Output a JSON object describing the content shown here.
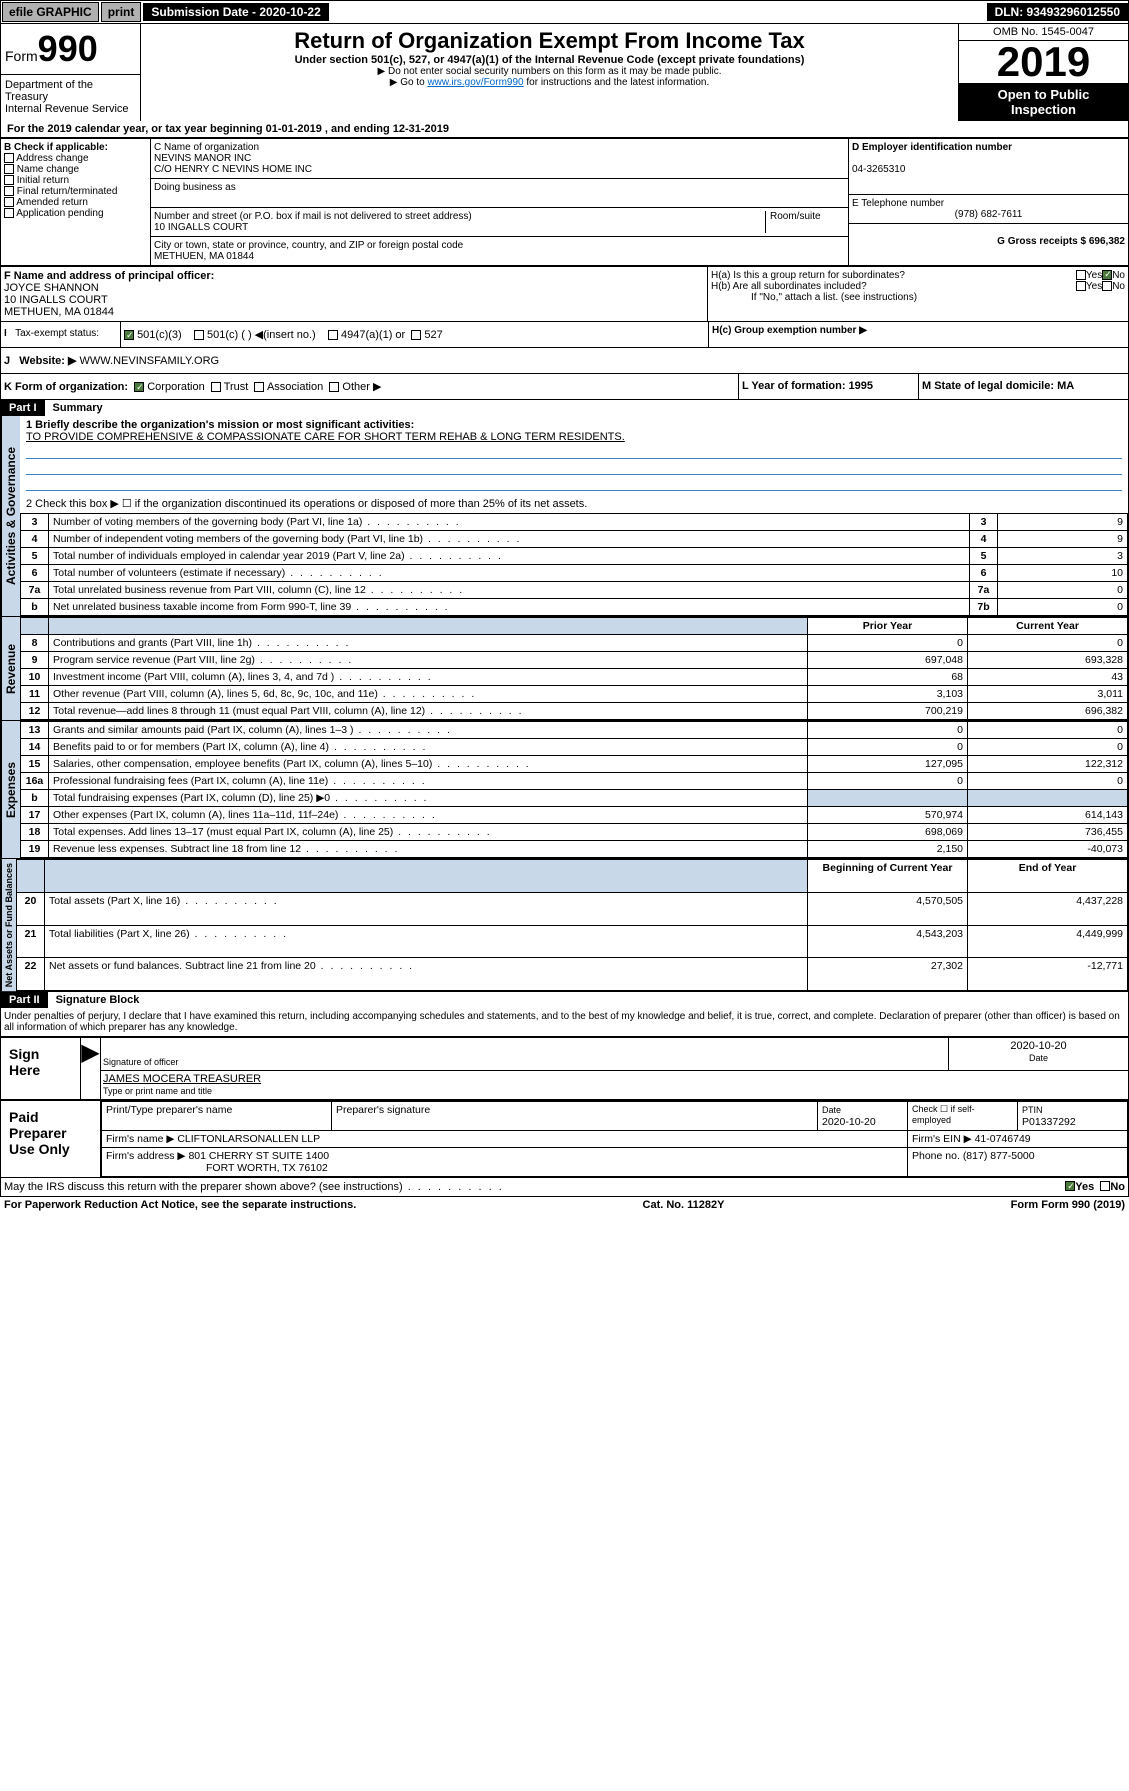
{
  "topbar": {
    "efile": "efile GRAPHIC",
    "print": "print",
    "sub_label": "Submission Date - 2020-10-22",
    "dln": "DLN: 93493296012550"
  },
  "header": {
    "form_word": "Form",
    "form_num": "990",
    "title": "Return of Organization Exempt From Income Tax",
    "subtitle": "Under section 501(c), 527, or 4947(a)(1) of the Internal Revenue Code (except private foundations)",
    "instr1": "▶ Do not enter social security numbers on this form as it may be made public.",
    "instr2_pre": "▶ Go to ",
    "instr2_link": "www.irs.gov/Form990",
    "instr2_post": " for instructions and the latest information.",
    "omb": "OMB No. 1545-0047",
    "year": "2019",
    "open1": "Open to Public",
    "open2": "Inspection",
    "dept1": "Department of the Treasury",
    "dept2": "Internal Revenue Service"
  },
  "period": {
    "text": "For the 2019 calendar year, or tax year beginning 01-01-2019    , and ending 12-31-2019"
  },
  "boxB": {
    "label": "B Check if applicable:",
    "opts": [
      "Address change",
      "Name change",
      "Initial return",
      "Final return/terminated",
      "Amended return",
      "Application pending"
    ]
  },
  "boxC": {
    "name_label": "C Name of organization",
    "name": "NEVINS MANOR INC",
    "co": "C/O HENRY C NEVINS HOME INC",
    "dba_label": "Doing business as",
    "addr_label": "Number and street (or P.O. box if mail is not delivered to street address)",
    "room": "Room/suite",
    "addr": "10 INGALLS COURT",
    "city_label": "City or town, state or province, country, and ZIP or foreign postal code",
    "city": "METHUEN, MA  01844"
  },
  "boxD": {
    "label": "D Employer identification number",
    "val": "04-3265310"
  },
  "boxE": {
    "label": "E Telephone number",
    "val": "(978) 682-7611"
  },
  "boxG": {
    "label": "G Gross receipts $ 696,382"
  },
  "boxF": {
    "label": "F  Name and address of principal officer:",
    "name": "JOYCE SHANNON",
    "addr": "10 INGALLS COURT",
    "city": "METHUEN, MA  01844"
  },
  "boxH": {
    "ha": "H(a)  Is this a group return for subordinates?",
    "hb": "H(b)  Are all subordinates included?",
    "hb_note": "If \"No,\" attach a list. (see instructions)",
    "hc": "H(c)  Group exemption number ▶",
    "yes": "Yes",
    "no": "No"
  },
  "boxI": {
    "label": "Tax-exempt status:",
    "o1": "501(c)(3)",
    "o2": "501(c) (   ) ◀(insert no.)",
    "o3": "4947(a)(1) or",
    "o4": "527"
  },
  "boxJ": {
    "label": "Website: ▶",
    "val": "WWW.NEVINSFAMILY.ORG"
  },
  "boxK": {
    "label": "K Form of organization:",
    "corp": "Corporation",
    "trust": "Trust",
    "assoc": "Association",
    "other": "Other ▶"
  },
  "boxL": {
    "label": "L Year of formation: 1995"
  },
  "boxM": {
    "label": "M State of legal domicile: MA"
  },
  "part1": {
    "hdr": "Part I",
    "title": "Summary",
    "line1_label": "1  Briefly describe the organization's mission or most significant activities:",
    "line1_val": "TO PROVIDE COMPREHENSIVE & COMPASSIONATE CARE FOR SHORT TERM REHAB & LONG TERM RESIDENTS.",
    "line2": "2   Check this box ▶ ☐  if the organization discontinued its operations or disposed of more than 25% of its net assets.",
    "lines_ag": [
      {
        "n": "3",
        "t": "Number of voting members of the governing body (Part VI, line 1a)",
        "box": "3",
        "v": "9"
      },
      {
        "n": "4",
        "t": "Number of independent voting members of the governing body (Part VI, line 1b)",
        "box": "4",
        "v": "9"
      },
      {
        "n": "5",
        "t": "Total number of individuals employed in calendar year 2019 (Part V, line 2a)",
        "box": "5",
        "v": "3"
      },
      {
        "n": "6",
        "t": "Total number of volunteers (estimate if necessary)",
        "box": "6",
        "v": "10"
      },
      {
        "n": "7a",
        "t": "Total unrelated business revenue from Part VIII, column (C), line 12",
        "box": "7a",
        "v": "0"
      },
      {
        "n": "b",
        "t": "Net unrelated business taxable income from Form 990-T, line 39",
        "box": "7b",
        "v": "0"
      }
    ],
    "prior": "Prior Year",
    "current": "Current Year",
    "rev": [
      {
        "n": "8",
        "t": "Contributions and grants (Part VIII, line 1h)",
        "p": "0",
        "c": "0"
      },
      {
        "n": "9",
        "t": "Program service revenue (Part VIII, line 2g)",
        "p": "697,048",
        "c": "693,328"
      },
      {
        "n": "10",
        "t": "Investment income (Part VIII, column (A), lines 3, 4, and 7d )",
        "p": "68",
        "c": "43"
      },
      {
        "n": "11",
        "t": "Other revenue (Part VIII, column (A), lines 5, 6d, 8c, 9c, 10c, and 11e)",
        "p": "3,103",
        "c": "3,011"
      },
      {
        "n": "12",
        "t": "Total revenue—add lines 8 through 11 (must equal Part VIII, column (A), line 12)",
        "p": "700,219",
        "c": "696,382"
      }
    ],
    "exp": [
      {
        "n": "13",
        "t": "Grants and similar amounts paid (Part IX, column (A), lines 1–3 )",
        "p": "0",
        "c": "0"
      },
      {
        "n": "14",
        "t": "Benefits paid to or for members (Part IX, column (A), line 4)",
        "p": "0",
        "c": "0"
      },
      {
        "n": "15",
        "t": "Salaries, other compensation, employee benefits (Part IX, column (A), lines 5–10)",
        "p": "127,095",
        "c": "122,312"
      },
      {
        "n": "16a",
        "t": "Professional fundraising fees (Part IX, column (A), line 11e)",
        "p": "0",
        "c": "0"
      },
      {
        "n": "b",
        "t": "Total fundraising expenses (Part IX, column (D), line 25) ▶0",
        "p": "",
        "c": "",
        "shade": true
      },
      {
        "n": "17",
        "t": "Other expenses (Part IX, column (A), lines 11a–11d, 11f–24e)",
        "p": "570,974",
        "c": "614,143"
      },
      {
        "n": "18",
        "t": "Total expenses. Add lines 13–17 (must equal Part IX, column (A), line 25)",
        "p": "698,069",
        "c": "736,455"
      },
      {
        "n": "19",
        "t": "Revenue less expenses. Subtract line 18 from line 12",
        "p": "2,150",
        "c": "-40,073"
      }
    ],
    "begin": "Beginning of Current Year",
    "end": "End of Year",
    "net": [
      {
        "n": "20",
        "t": "Total assets (Part X, line 16)",
        "p": "4,570,505",
        "c": "4,437,228"
      },
      {
        "n": "21",
        "t": "Total liabilities (Part X, line 26)",
        "p": "4,543,203",
        "c": "4,449,999"
      },
      {
        "n": "22",
        "t": "Net assets or fund balances. Subtract line 21 from line 20",
        "p": "27,302",
        "c": "-12,771"
      }
    ],
    "side_ag": "Activities & Governance",
    "side_rev": "Revenue",
    "side_exp": "Expenses",
    "side_net": "Net Assets or Fund Balances"
  },
  "part2": {
    "hdr": "Part II",
    "title": "Signature Block",
    "perjury": "Under penalties of perjury, I declare that I have examined this return, including accompanying schedules and statements, and to the best of my knowledge and belief, it is true, correct, and complete. Declaration of preparer (other than officer) is based on all information of which preparer has any knowledge.",
    "sign": "Sign Here",
    "sig_officer": "Signature of officer",
    "date": "2020-10-20",
    "date_lbl": "Date",
    "officer": "JAMES MOCERA  TREASURER",
    "type_name": "Type or print name and title",
    "paid": "Paid Preparer Use Only",
    "prep_name_lbl": "Print/Type preparer's name",
    "prep_sig_lbl": "Preparer's signature",
    "prep_date": "2020-10-20",
    "check_self": "Check ☐ if self-employed",
    "ptin_lbl": "PTIN",
    "ptin": "P01337292",
    "firm_name_lbl": "Firm's name    ▶",
    "firm_name": "CLIFTONLARSONALLEN LLP",
    "firm_ein_lbl": "Firm's EIN ▶",
    "firm_ein": "41-0746749",
    "firm_addr_lbl": "Firm's address ▶",
    "firm_addr": "801 CHERRY ST SUITE 1400",
    "firm_city": "FORT WORTH, TX  76102",
    "phone_lbl": "Phone no.",
    "phone": "(817) 877-5000",
    "discuss": "May the IRS discuss this return with the preparer shown above? (see instructions)",
    "yes": "Yes",
    "no": "No"
  },
  "footer": {
    "pra": "For Paperwork Reduction Act Notice, see the separate instructions.",
    "cat": "Cat. No. 11282Y",
    "form": "Form 990 (2019)"
  }
}
